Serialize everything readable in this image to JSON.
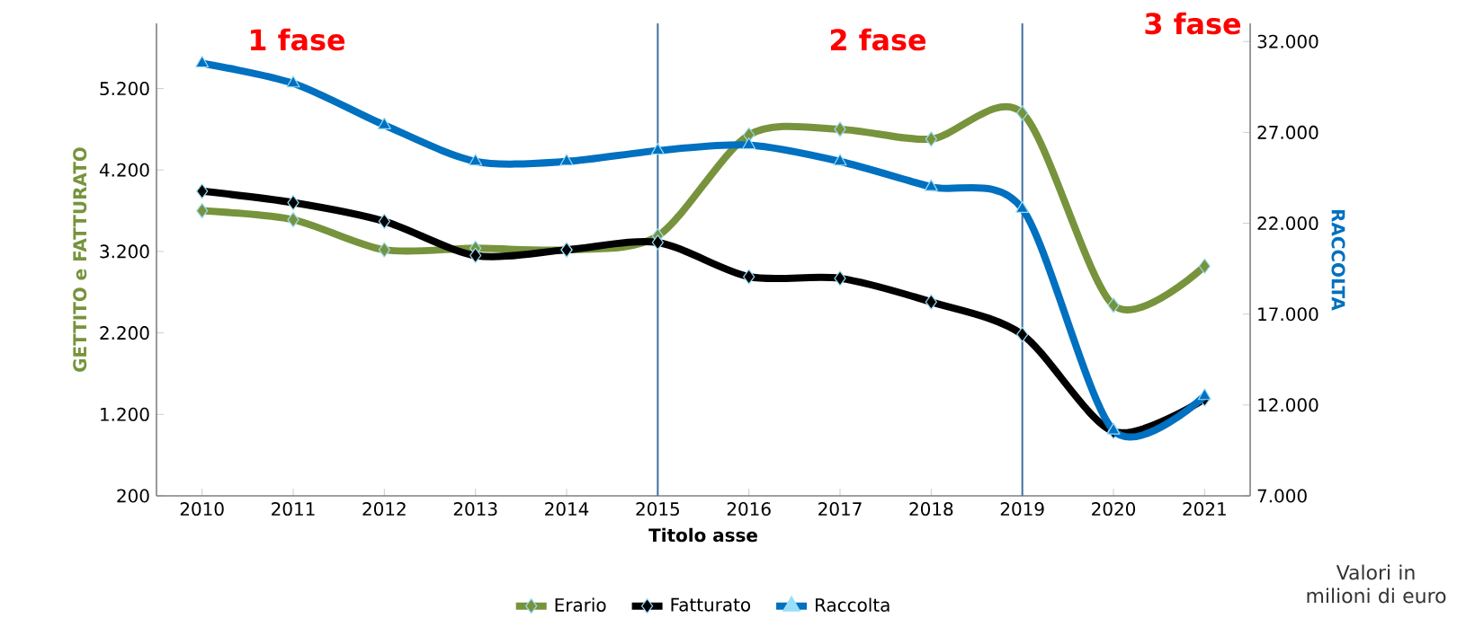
{
  "chart_data": {
    "type": "line",
    "xlabel": "Titolo asse",
    "ylabel": "GETTITO e FATTURATO",
    "y2label": "RACCOLTA",
    "x": [
      2010,
      2011,
      2012,
      2013,
      2014,
      2015,
      2016,
      2017,
      2018,
      2019,
      2020,
      2021
    ],
    "xlim": [
      2009.5,
      2021.5
    ],
    "xticks": [
      2010,
      2011,
      2012,
      2013,
      2014,
      2015,
      2016,
      2017,
      2018,
      2019,
      2020,
      2021
    ],
    "ylim": [
      200,
      6000
    ],
    "yticks": [
      200,
      {
        "value": 1200,
        "label": "1.200"
      },
      {
        "value": 2200,
        "label": "2.200"
      },
      {
        "value": 3200,
        "label": "3.200"
      },
      {
        "value": 4200,
        "label": "4.200"
      },
      {
        "value": 5200,
        "label": "5.200"
      }
    ],
    "y2lim": [
      7000,
      33000
    ],
    "y2ticks": [
      {
        "value": 7000,
        "label": "7.000"
      },
      {
        "value": 12000,
        "label": "12.000"
      },
      {
        "value": 17000,
        "label": "17.000"
      },
      {
        "value": 22000,
        "label": "22.000"
      },
      {
        "value": 27000,
        "label": "27.000"
      },
      {
        "value": 32000,
        "label": "32.000"
      }
    ],
    "series": [
      {
        "name": "Erario",
        "color": "#77933c",
        "marker": "diamond",
        "values": [
          3700,
          3590,
          3220,
          3240,
          3220,
          3390,
          4630,
          4700,
          4580,
          4900,
          2540,
          3020
        ]
      },
      {
        "name": "Fatturato",
        "color": "#000000",
        "marker": "diamond",
        "values": [
          3940,
          3800,
          3570,
          3150,
          3220,
          3310,
          2890,
          2870,
          2580,
          2180,
          990,
          1390
        ]
      },
      {
        "name": "Raccolta",
        "color": "#0070c0",
        "marker": "triangle",
        "axis": "y2",
        "values": [
          30800,
          29700,
          27400,
          25400,
          25400,
          26000,
          26300,
          25400,
          24000,
          22800,
          10600,
          12500
        ]
      }
    ],
    "ref_lines": [
      {
        "axis": "x",
        "value": 2015,
        "color": "#41719c"
      },
      {
        "axis": "x",
        "value": 2019,
        "color": "#41719c"
      }
    ],
    "annotations": [
      "1 fase",
      "2 fase",
      "3 fase",
      "Valori in milioni di euro"
    ],
    "legend": "bottom"
  }
}
